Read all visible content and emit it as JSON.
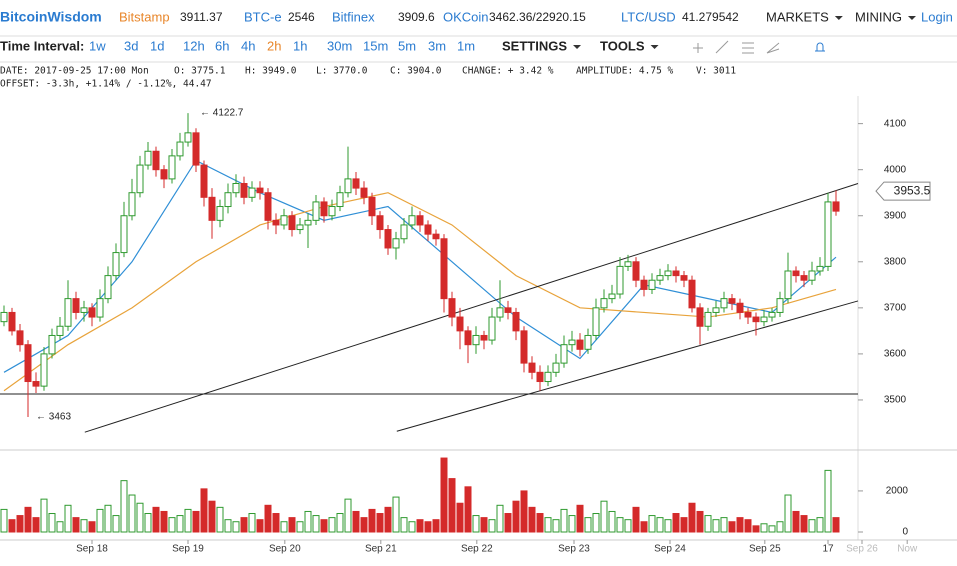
{
  "header": {
    "brand": "BitcoinWisdom",
    "tickers": [
      {
        "name": "Bitstamp",
        "price": "3911.37"
      },
      {
        "name": "BTC-e",
        "price": "2546"
      },
      {
        "name": "Bitfinex",
        "price": "3909.6"
      },
      {
        "name": "OKCoin",
        "price": "3462.36/22920.15"
      },
      {
        "name": "LTC/USD",
        "price": "41.279542"
      }
    ],
    "menus": [
      "MARKETS",
      "MINING"
    ],
    "login": "Login"
  },
  "toolbar": {
    "label": "Time Interval:",
    "intervals": [
      "1w",
      "3d",
      "1d",
      "12h",
      "6h",
      "4h",
      "2h",
      "1h",
      "30m",
      "15m",
      "5m",
      "3m",
      "1m"
    ],
    "active": "2h",
    "menus": [
      "SETTINGS",
      "TOOLS"
    ]
  },
  "info": {
    "line1": [
      "DATE: 2017-09-25 17:00 Mon",
      "O: 3775.1",
      "H: 3949.0",
      "L: 3770.0",
      "C: 3904.0",
      "CHANGE: + 3.42 %",
      "AMPLITUDE: 4.75 %",
      "V: 3011"
    ],
    "line2": "OFFSET: -3.3h, +1.14% / -1.12%, 44.47"
  },
  "chart_data": {
    "type": "candlestick",
    "up_color": "#2f9a2f",
    "down_color": "#d42a2a",
    "ohlc": [
      [
        3670,
        3705,
        3660,
        3690
      ],
      [
        3690,
        3700,
        3640,
        3650
      ],
      [
        3650,
        3665,
        3605,
        3620
      ],
      [
        3620,
        3630,
        3463,
        3540
      ],
      [
        3540,
        3560,
        3515,
        3530
      ],
      [
        3530,
        3615,
        3520,
        3600
      ],
      [
        3600,
        3655,
        3590,
        3640
      ],
      [
        3640,
        3680,
        3630,
        3660
      ],
      [
        3660,
        3760,
        3650,
        3720
      ],
      [
        3720,
        3735,
        3675,
        3690
      ],
      [
        3690,
        3715,
        3670,
        3700
      ],
      [
        3700,
        3710,
        3660,
        3680
      ],
      [
        3680,
        3740,
        3670,
        3720
      ],
      [
        3720,
        3790,
        3710,
        3770
      ],
      [
        3770,
        3840,
        3760,
        3820
      ],
      [
        3820,
        3930,
        3810,
        3900
      ],
      [
        3900,
        3980,
        3890,
        3950
      ],
      [
        3950,
        4030,
        3940,
        4010
      ],
      [
        4010,
        4060,
        4000,
        4040
      ],
      [
        4040,
        4050,
        3985,
        4000
      ],
      [
        4000,
        4010,
        3960,
        3980
      ],
      [
        3980,
        4045,
        3970,
        4030
      ],
      [
        4030,
        4080,
        4020,
        4060
      ],
      [
        4060,
        4122.7,
        4050,
        4080
      ],
      [
        4080,
        4090,
        3995,
        4010
      ],
      [
        4010,
        4020,
        3920,
        3940
      ],
      [
        3940,
        3960,
        3850,
        3890
      ],
      [
        3890,
        3935,
        3875,
        3920
      ],
      [
        3920,
        3970,
        3905,
        3950
      ],
      [
        3950,
        3990,
        3940,
        3970
      ],
      [
        3970,
        3985,
        3925,
        3940
      ],
      [
        3940,
        3975,
        3930,
        3960
      ],
      [
        3960,
        3975,
        3935,
        3950
      ],
      [
        3950,
        3960,
        3870,
        3890
      ],
      [
        3890,
        3905,
        3860,
        3880
      ],
      [
        3880,
        3915,
        3870,
        3900
      ],
      [
        3900,
        3910,
        3855,
        3870
      ],
      [
        3870,
        3895,
        3860,
        3880
      ],
      [
        3880,
        3905,
        3830,
        3890
      ],
      [
        3890,
        3945,
        3880,
        3930
      ],
      [
        3930,
        3940,
        3885,
        3900
      ],
      [
        3900,
        3935,
        3890,
        3920
      ],
      [
        3920,
        3965,
        3910,
        3950
      ],
      [
        3950,
        4050,
        3940,
        3980
      ],
      [
        3980,
        3995,
        3945,
        3960
      ],
      [
        3960,
        3975,
        3925,
        3940
      ],
      [
        3940,
        3950,
        3880,
        3900
      ],
      [
        3900,
        3910,
        3850,
        3870
      ],
      [
        3870,
        3880,
        3815,
        3830
      ],
      [
        3830,
        3865,
        3805,
        3850
      ],
      [
        3850,
        3895,
        3840,
        3880
      ],
      [
        3880,
        3920,
        3870,
        3900
      ],
      [
        3900,
        3910,
        3865,
        3880
      ],
      [
        3880,
        3890,
        3845,
        3860
      ],
      [
        3860,
        3870,
        3835,
        3850
      ],
      [
        3850,
        3860,
        3690,
        3720
      ],
      [
        3720,
        3735,
        3660,
        3680
      ],
      [
        3680,
        3700,
        3610,
        3650
      ],
      [
        3650,
        3660,
        3580,
        3620
      ],
      [
        3620,
        3660,
        3600,
        3640
      ],
      [
        3640,
        3650,
        3610,
        3630
      ],
      [
        3630,
        3700,
        3620,
        3680
      ],
      [
        3680,
        3760,
        3670,
        3700
      ],
      [
        3700,
        3715,
        3675,
        3690
      ],
      [
        3690,
        3700,
        3630,
        3650
      ],
      [
        3650,
        3660,
        3560,
        3580
      ],
      [
        3580,
        3595,
        3545,
        3560
      ],
      [
        3560,
        3575,
        3520,
        3540
      ],
      [
        3540,
        3575,
        3530,
        3560
      ],
      [
        3560,
        3600,
        3550,
        3580
      ],
      [
        3580,
        3640,
        3570,
        3620
      ],
      [
        3620,
        3650,
        3605,
        3630
      ],
      [
        3630,
        3645,
        3595,
        3610
      ],
      [
        3610,
        3655,
        3600,
        3640
      ],
      [
        3640,
        3720,
        3630,
        3700
      ],
      [
        3700,
        3740,
        3690,
        3720
      ],
      [
        3720,
        3750,
        3710,
        3730
      ],
      [
        3730,
        3810,
        3720,
        3790
      ],
      [
        3790,
        3815,
        3780,
        3800
      ],
      [
        3800,
        3810,
        3745,
        3760
      ],
      [
        3760,
        3770,
        3725,
        3740
      ],
      [
        3740,
        3775,
        3730,
        3760
      ],
      [
        3760,
        3785,
        3750,
        3770
      ],
      [
        3770,
        3795,
        3760,
        3780
      ],
      [
        3780,
        3790,
        3755,
        3770
      ],
      [
        3770,
        3780,
        3745,
        3760
      ],
      [
        3760,
        3770,
        3690,
        3700
      ],
      [
        3700,
        3710,
        3620,
        3660
      ],
      [
        3660,
        3700,
        3650,
        3690
      ],
      [
        3690,
        3715,
        3680,
        3700
      ],
      [
        3700,
        3735,
        3690,
        3720
      ],
      [
        3720,
        3730,
        3695,
        3710
      ],
      [
        3710,
        3720,
        3675,
        3690
      ],
      [
        3690,
        3700,
        3665,
        3680
      ],
      [
        3680,
        3690,
        3640,
        3670
      ],
      [
        3670,
        3695,
        3660,
        3680
      ],
      [
        3680,
        3700,
        3670,
        3690
      ],
      [
        3690,
        3735,
        3680,
        3720
      ],
      [
        3720,
        3820,
        3710,
        3780
      ],
      [
        3780,
        3790,
        3755,
        3770
      ],
      [
        3770,
        3780,
        3745,
        3760
      ],
      [
        3760,
        3800,
        3750,
        3780
      ],
      [
        3780,
        3810,
        3770,
        3790
      ],
      [
        3790,
        3950,
        3780,
        3930
      ],
      [
        3930,
        3955,
        3900,
        3910
      ]
    ],
    "volume": [
      1100,
      600,
      800,
      1200,
      700,
      1600,
      900,
      500,
      1300,
      700,
      600,
      500,
      1100,
      1300,
      800,
      2500,
      1800,
      1400,
      900,
      1200,
      1000,
      700,
      800,
      1100,
      1000,
      2100,
      1500,
      1200,
      600,
      500,
      700,
      900,
      600,
      1300,
      900,
      500,
      700,
      500,
      1000,
      800,
      600,
      700,
      900,
      1600,
      1000,
      700,
      1100,
      900,
      1200,
      1700,
      700,
      500,
      600,
      500,
      600,
      3600,
      2600,
      1400,
      2200,
      800,
      700,
      600,
      1300,
      900,
      1500,
      2000,
      1200,
      900,
      700,
      600,
      1100,
      800,
      1300,
      700,
      900,
      1500,
      1000,
      700,
      600,
      1200,
      500,
      800,
      700,
      600,
      900,
      700,
      1400,
      1000,
      800,
      600,
      700,
      500,
      700,
      600,
      300,
      400,
      300,
      500,
      1800,
      1000,
      800,
      600,
      700,
      3000,
      700
    ],
    "averages": [
      {
        "color": "#2f8fd6",
        "x": [
          0,
          8,
          16,
          24,
          32,
          40,
          48,
          56,
          64,
          72,
          80,
          88,
          96,
          104
        ],
        "values": [
          3560,
          3640,
          3800,
          4020,
          3950,
          3890,
          3920,
          3800,
          3680,
          3590,
          3750,
          3720,
          3690,
          3810
        ]
      },
      {
        "color": "#e8a33b",
        "x": [
          0,
          8,
          16,
          24,
          32,
          40,
          48,
          56,
          64,
          72,
          80,
          88,
          96,
          104
        ],
        "values": [
          3520,
          3620,
          3700,
          3800,
          3880,
          3920,
          3950,
          3880,
          3770,
          3700,
          3690,
          3680,
          3700,
          3740
        ]
      }
    ],
    "lines": [
      {
        "x": [
          10.1,
          106.75
        ],
        "y": [
          3430,
          3970
        ]
      },
      {
        "x": [
          49.1,
          106.75
        ],
        "y": [
          3432,
          3715
        ]
      },
      {
        "x": [
          -0.5,
          106.75
        ],
        "y": [
          3513,
          3513
        ]
      }
    ],
    "annotations": [
      "← 4122.7",
      "← 3463"
    ],
    "last_price": 3953.5,
    "xlim": [
      -0.5,
      119.125
    ],
    "ylim": [
      3400,
      4160
    ],
    "vlim": [
      0,
      3700
    ],
    "yticks": [
      3500,
      3600,
      3700,
      3800,
      3900,
      4000,
      4100
    ],
    "vticks": [
      0,
      2000
    ],
    "xticks": [
      {
        "value": 11,
        "label": "Sep 18"
      },
      {
        "value": 23,
        "label": "Sep 19"
      },
      {
        "value": 35.1,
        "label": "Sep 20"
      },
      {
        "value": 47.1,
        "label": "Sep 21"
      },
      {
        "value": 59.1,
        "label": "Sep 22"
      },
      {
        "value": 71.25,
        "label": "Sep 23"
      },
      {
        "value": 83.25,
        "label": "Sep 24"
      },
      {
        "value": 95.1,
        "label": "Sep 25"
      },
      {
        "value": 103,
        "label": "17"
      },
      {
        "value": 107.25,
        "label": "Sep 26"
      },
      {
        "value": 112.9,
        "label": "Now"
      }
    ]
  }
}
